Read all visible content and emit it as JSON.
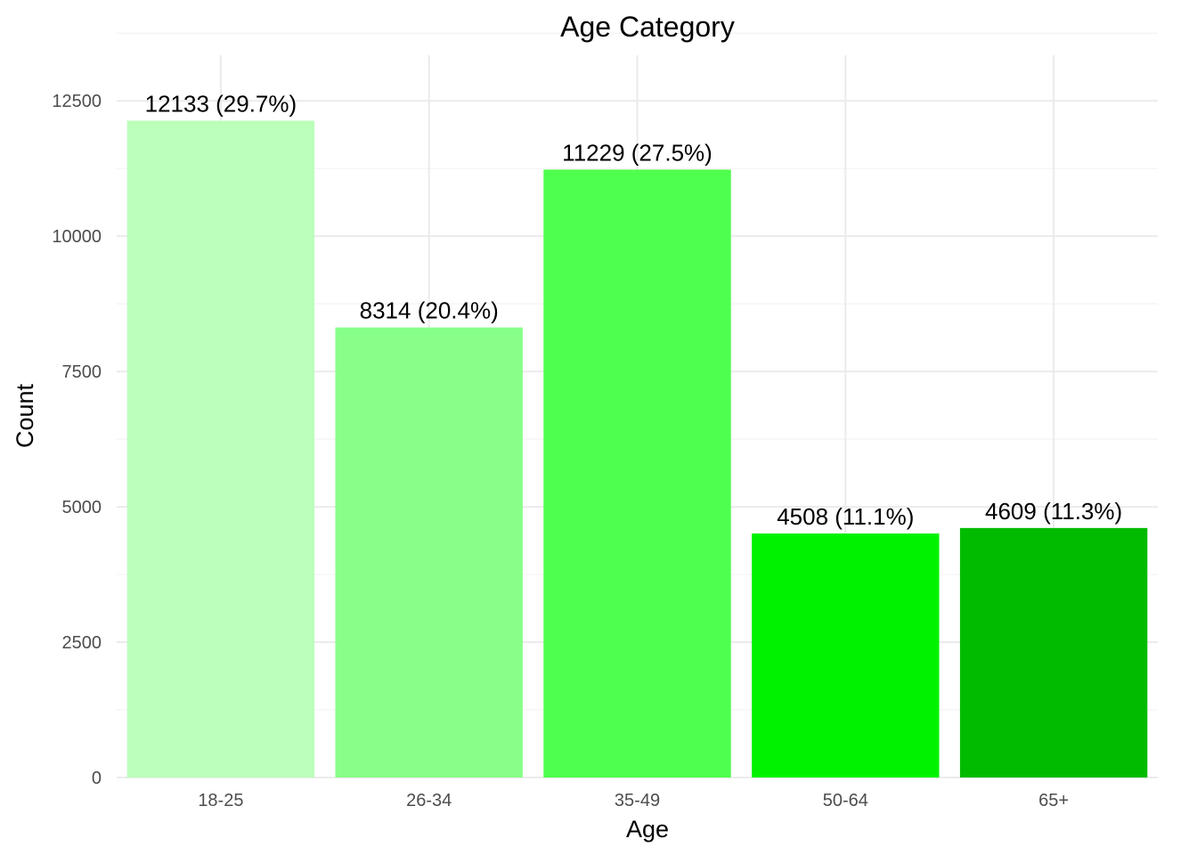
{
  "chart_data": {
    "type": "bar",
    "title": "Age Category",
    "xlabel": "Age",
    "ylabel": "Count",
    "categories": [
      "18-25",
      "26-34",
      "35-49",
      "50-64",
      "65+"
    ],
    "values": [
      12133,
      8314,
      11229,
      4508,
      4609
    ],
    "data_labels": [
      "12133 (29.7%)",
      "8314 (20.4%)",
      "11229 (27.5%)",
      "4508 (11.1%)",
      "4609 (11.3%)"
    ],
    "colors": [
      "#BBFFBB",
      "#88FF88",
      "#4EFF4E",
      "#00F200",
      "#00BB00"
    ],
    "y_ticks": [
      0,
      2500,
      5000,
      7500,
      10000,
      12500
    ],
    "ylim": [
      0,
      13000
    ],
    "grid": true,
    "legend": "none"
  }
}
